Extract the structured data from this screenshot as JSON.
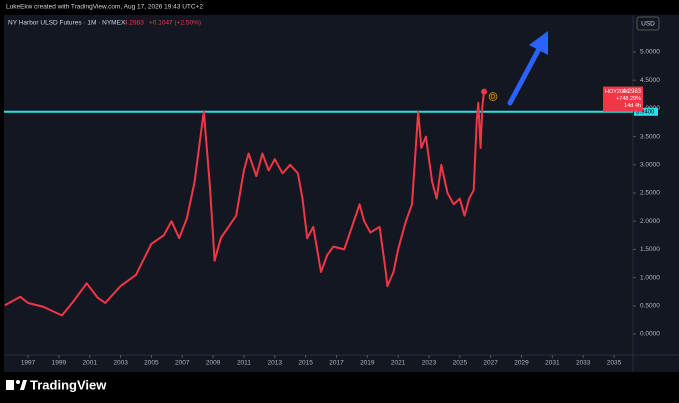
{
  "header": {
    "caption": "LukeEkw created with TradingView.com, Aug 17, 2026 19:43 UTC+2",
    "currency": "USD"
  },
  "footer": {
    "brand": "TradingView"
  },
  "chart_data": {
    "type": "line",
    "title": "NY Harbor ULSD Futures · 1M · NYMEX",
    "change": "+0.1047 (+2.50%)",
    "symbol": "HOY2026",
    "change_percent": "+748.29%",
    "countdown": "14d 4h",
    "marker": "D",
    "level": {
      "value": 3.94,
      "label": "3.9400",
      "color": "#26e0ea"
    },
    "xlim": [
      1995.44,
      2036.23
    ],
    "xticks": [
      1997,
      1999,
      2001,
      2003,
      2005,
      2007,
      2009,
      2011,
      2013,
      2015,
      2017,
      2019,
      2021,
      2023,
      2025,
      2027,
      2029,
      2031,
      2033,
      2035
    ],
    "ylim": [
      -0.372,
      5.656
    ],
    "yticks": [
      {
        "value": 0,
        "label": "0.0000"
      },
      {
        "value": 0.5,
        "label": "0.5000"
      },
      {
        "value": 1,
        "label": "1.0000"
      },
      {
        "value": 1.5,
        "label": "1.5000"
      },
      {
        "value": 2,
        "label": "2.0000"
      },
      {
        "value": 2.5,
        "label": "2.5000"
      },
      {
        "value": 3,
        "label": "3.0000"
      },
      {
        "value": 3.5,
        "label": "3.5000"
      },
      {
        "value": 4,
        "label": "4.0000"
      },
      {
        "value": 4.5,
        "label": "4.5000"
      },
      {
        "value": 5,
        "label": "5.0000"
      }
    ],
    "x": [
      1995.5,
      1996.5,
      1997,
      1998,
      1998.8,
      1999.2,
      2000,
      2000.8,
      2001.5,
      2002,
      2003,
      2004,
      2005,
      2005.8,
      2006.3,
      2006.8,
      2007.3,
      2007.8,
      2008.4,
      2008.8,
      2009.1,
      2009.5,
      2010,
      2010.5,
      2011,
      2011.3,
      2011.8,
      2012.2,
      2012.6,
      2013,
      2013.5,
      2014,
      2014.5,
      2014.8,
      2015.1,
      2015.5,
      2016,
      2016.4,
      2016.8,
      2017.5,
      2018,
      2018.5,
      2018.8,
      2019.2,
      2019.8,
      2020.2,
      2020.3,
      2020.7,
      2021,
      2021.5,
      2021.9,
      2022.3,
      2022.5,
      2022.8,
      2023.2,
      2023.5,
      2023.8,
      2024.2,
      2024.6,
      2025,
      2025.3,
      2025.6,
      2025.9,
      2026.1,
      2026.2,
      2026.35,
      2026.45,
      2026.57
    ],
    "series": [
      {
        "color": "#f23645",
        "values": [
          0.51,
          0.66,
          0.55,
          0.48,
          0.38,
          0.33,
          0.6,
          0.9,
          0.65,
          0.55,
          0.85,
          1.05,
          1.6,
          1.75,
          2.0,
          1.7,
          2.05,
          2.7,
          3.95,
          2.6,
          1.3,
          1.7,
          1.9,
          2.1,
          2.9,
          3.2,
          2.8,
          3.2,
          2.9,
          3.1,
          2.85,
          3.0,
          2.85,
          2.4,
          1.7,
          1.9,
          1.1,
          1.4,
          1.55,
          1.5,
          1.9,
          2.3,
          2.0,
          1.8,
          1.9,
          1.1,
          0.85,
          1.1,
          1.5,
          2.0,
          2.3,
          3.95,
          3.3,
          3.5,
          2.7,
          2.4,
          3.0,
          2.5,
          2.3,
          2.4,
          2.1,
          2.4,
          2.55,
          3.8,
          4.1,
          3.3,
          4.0,
          4.2983
        ]
      }
    ]
  }
}
